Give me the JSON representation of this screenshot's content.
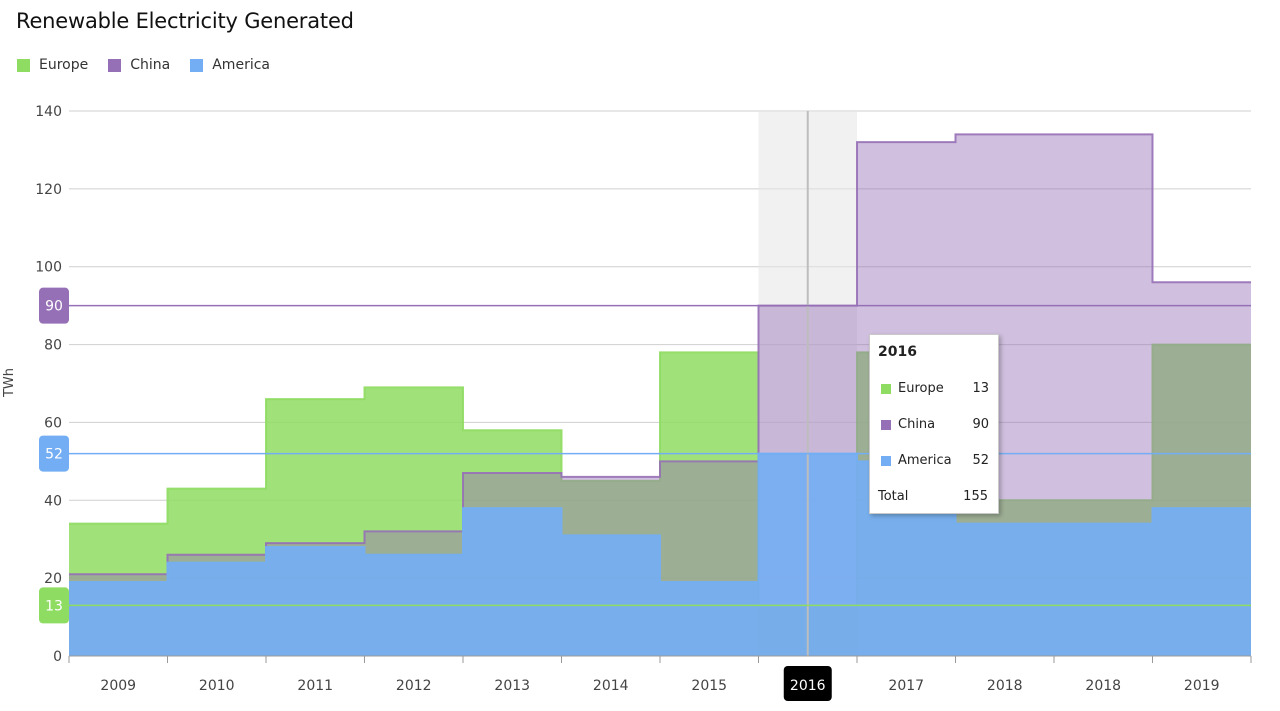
{
  "title": "Renewable Electricity Generated",
  "legend": [
    {
      "label": "Europe",
      "color": "#8fdc62"
    },
    {
      "label": "China",
      "color": "#9670b6"
    },
    {
      "label": "America",
      "color": "#73aef4"
    }
  ],
  "chart_data": {
    "type": "area",
    "step": true,
    "stacked": false,
    "title": "Renewable Electricity Generated",
    "xlabel": "",
    "ylabel": "TWh",
    "ylim": [
      0,
      140
    ],
    "yticks": [
      0,
      20,
      40,
      60,
      80,
      100,
      120,
      140
    ],
    "grid": true,
    "legend_position": "top-left",
    "categories": [
      "2009",
      "2010",
      "2011",
      "2012",
      "2013",
      "2014",
      "2015",
      "2016",
      "2017",
      "2018",
      "2018",
      "2019"
    ],
    "series": [
      {
        "name": "Europe",
        "color": "#8fdc62",
        "values": [
          34,
          43,
          66,
          69,
          58,
          45,
          78,
          13,
          78,
          40,
          40,
          80
        ]
      },
      {
        "name": "China",
        "color": "#9670b6",
        "values": [
          21,
          26,
          29,
          32,
          47,
          46,
          50,
          90,
          132,
          134,
          134,
          96
        ]
      },
      {
        "name": "America",
        "color": "#73aef4",
        "values": [
          19,
          24,
          28,
          26,
          38,
          31,
          19,
          52,
          50,
          34,
          34,
          38
        ]
      }
    ],
    "crosshair": {
      "category": "2016",
      "markers": [
        {
          "series": "Europe",
          "value": 13
        },
        {
          "series": "China",
          "value": 90
        },
        {
          "series": "America",
          "value": 52
        }
      ]
    },
    "tooltip": {
      "title": "2016",
      "rows": [
        {
          "label": "Europe",
          "value": "13",
          "color": "#8fdc62"
        },
        {
          "label": "China",
          "value": "90",
          "color": "#9670b6"
        },
        {
          "label": "America",
          "value": "52",
          "color": "#73aef4"
        }
      ],
      "total_label": "Total",
      "total_value": "155"
    }
  }
}
